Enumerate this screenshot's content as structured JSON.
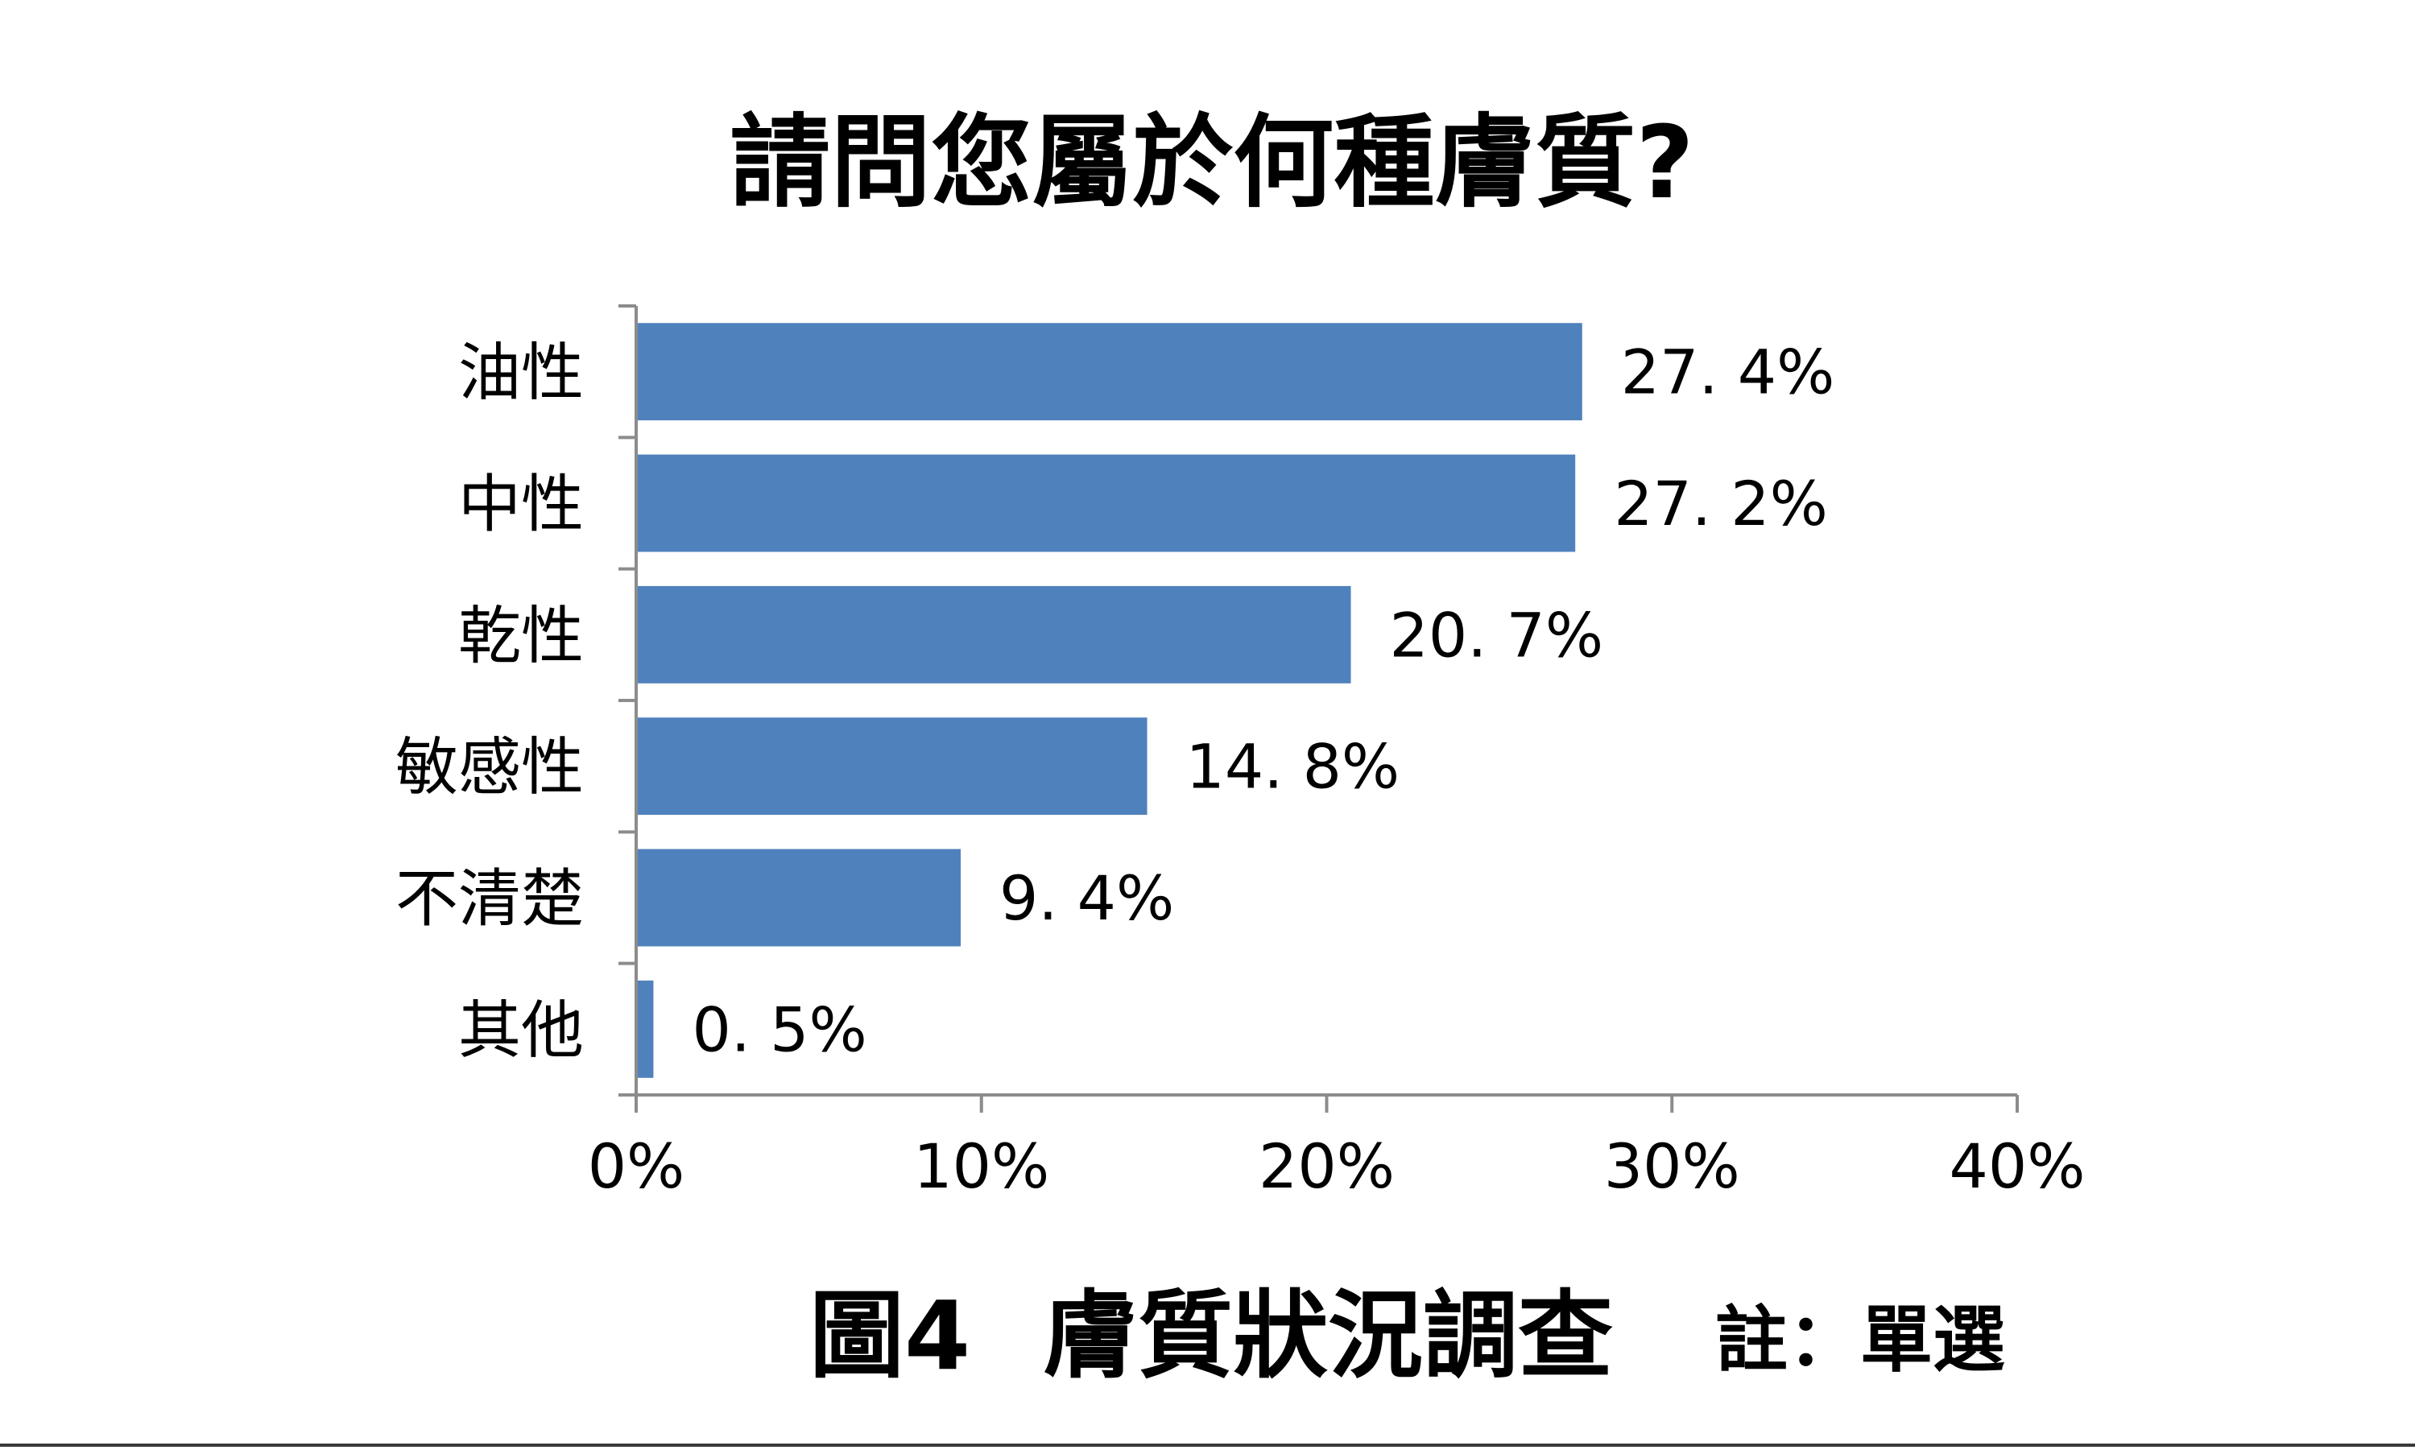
{
  "chart_data": {
    "type": "bar",
    "orientation": "horizontal",
    "title": "請問您屬於何種膚質?",
    "categories": [
      "油性",
      "中性",
      "乾性",
      "敏感性",
      "不清楚",
      "其他"
    ],
    "values": [
      27.4,
      27.2,
      20.7,
      14.8,
      9.4,
      0.5
    ],
    "value_labels": [
      "27. 4%",
      "27. 2%",
      "20. 7%",
      "14. 8%",
      "9. 4%",
      "0. 5%"
    ],
    "xlim": [
      0,
      40
    ],
    "x_ticks": [
      0,
      10,
      20,
      30,
      40
    ],
    "x_tick_labels": [
      "0%",
      "10%",
      "20%",
      "30%",
      "40%"
    ],
    "bar_color": "#4f81bd",
    "grid": false,
    "legend": "none"
  },
  "caption": {
    "figure_label": "圖4",
    "text": "膚質狀況調查",
    "note": "註：單選"
  }
}
